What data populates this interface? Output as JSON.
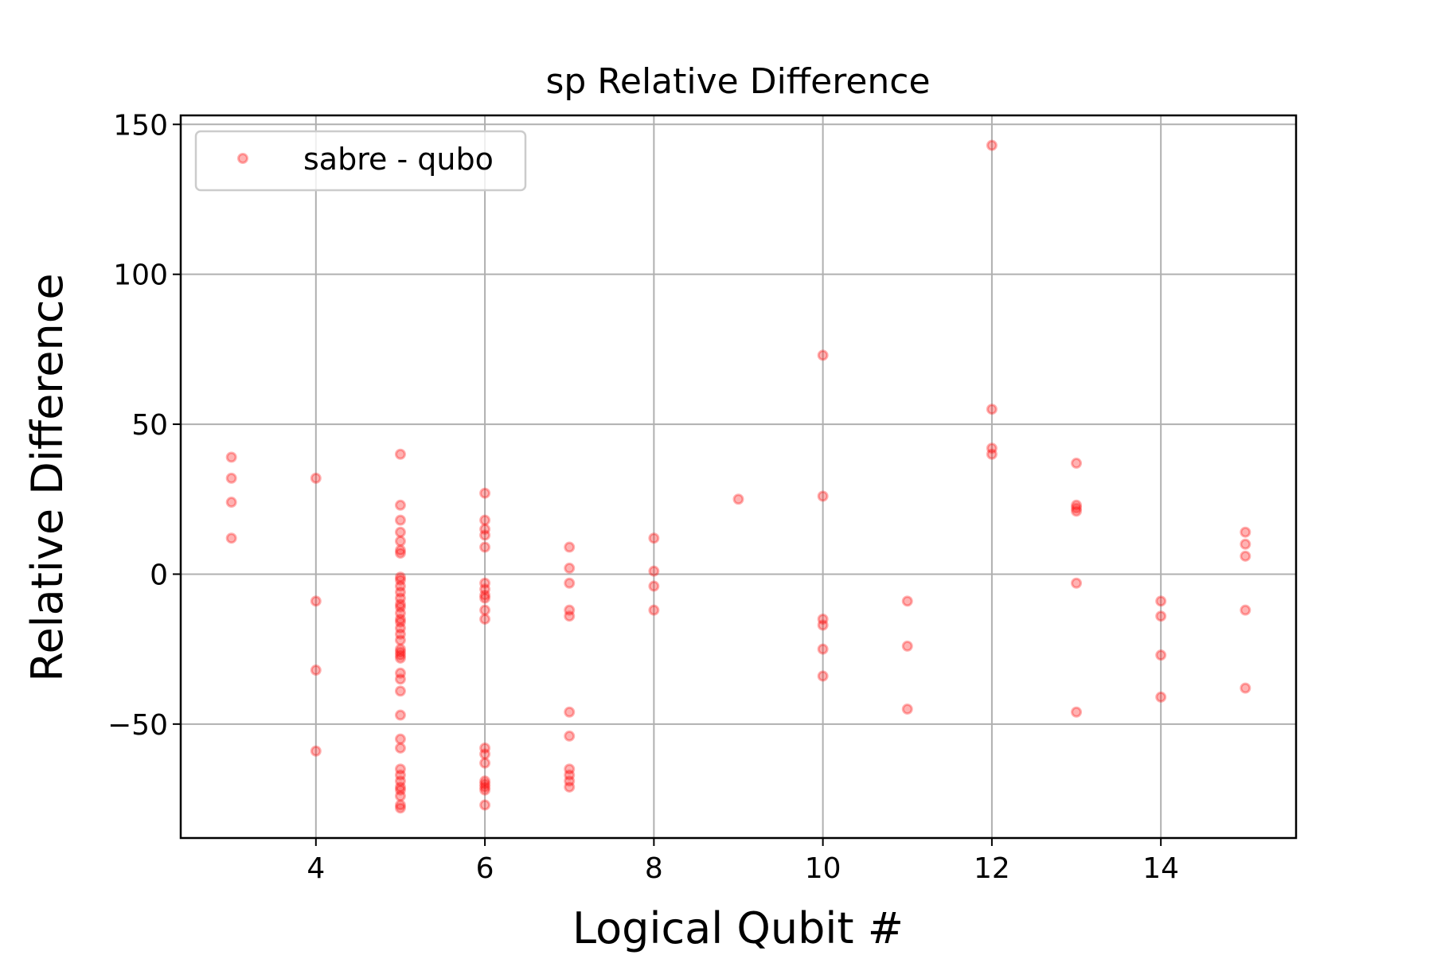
{
  "chart_data": {
    "type": "scatter",
    "title": "sp Relative Difference",
    "xlabel": "Logical Qubit #",
    "ylabel": "Relative Difference",
    "xlim": [
      2.4,
      15.6
    ],
    "ylim": [
      -88,
      153
    ],
    "x_ticks": [
      4,
      6,
      8,
      10,
      12,
      14
    ],
    "x_tick_labels": [
      "4",
      "6",
      "8",
      "10",
      "12",
      "14"
    ],
    "y_ticks": [
      -50,
      0,
      50,
      100,
      150
    ],
    "y_tick_labels": [
      "−50",
      "0",
      "50",
      "100",
      "150"
    ],
    "grid": true,
    "legend": {
      "position": "top-left"
    },
    "series": [
      {
        "name": "sabre - qubo",
        "color": "#ff0000",
        "marker": "circle",
        "points": [
          [
            3,
            39
          ],
          [
            3,
            32
          ],
          [
            3,
            24
          ],
          [
            3,
            12
          ],
          [
            4,
            32
          ],
          [
            4,
            -9
          ],
          [
            4,
            -32
          ],
          [
            4,
            -59
          ],
          [
            5,
            40
          ],
          [
            5,
            23
          ],
          [
            5,
            18
          ],
          [
            5,
            14
          ],
          [
            5,
            11
          ],
          [
            5,
            8
          ],
          [
            5,
            7
          ],
          [
            5,
            -1
          ],
          [
            5,
            -2
          ],
          [
            5,
            -4
          ],
          [
            5,
            -6
          ],
          [
            5,
            -8
          ],
          [
            5,
            -10
          ],
          [
            5,
            -11
          ],
          [
            5,
            -13
          ],
          [
            5,
            -15
          ],
          [
            5,
            -16
          ],
          [
            5,
            -18
          ],
          [
            5,
            -20
          ],
          [
            5,
            -22
          ],
          [
            5,
            -25
          ],
          [
            5,
            -26
          ],
          [
            5,
            -27
          ],
          [
            5,
            -28
          ],
          [
            5,
            -33
          ],
          [
            5,
            -35
          ],
          [
            5,
            -39
          ],
          [
            5,
            -47
          ],
          [
            5,
            -55
          ],
          [
            5,
            -58
          ],
          [
            5,
            -65
          ],
          [
            5,
            -67
          ],
          [
            5,
            -69
          ],
          [
            5,
            -71
          ],
          [
            5,
            -72
          ],
          [
            5,
            -74
          ],
          [
            5,
            -77
          ],
          [
            5,
            -78
          ],
          [
            6,
            27
          ],
          [
            6,
            18
          ],
          [
            6,
            15
          ],
          [
            6,
            13
          ],
          [
            6,
            9
          ],
          [
            6,
            -3
          ],
          [
            6,
            -5
          ],
          [
            6,
            -7
          ],
          [
            6,
            -8
          ],
          [
            6,
            -12
          ],
          [
            6,
            -15
          ],
          [
            6,
            -58
          ],
          [
            6,
            -60
          ],
          [
            6,
            -63
          ],
          [
            6,
            -69
          ],
          [
            6,
            -70
          ],
          [
            6,
            -71
          ],
          [
            6,
            -72
          ],
          [
            6,
            -77
          ],
          [
            7,
            9
          ],
          [
            7,
            2
          ],
          [
            7,
            -3
          ],
          [
            7,
            -12
          ],
          [
            7,
            -14
          ],
          [
            7,
            -46
          ],
          [
            7,
            -54
          ],
          [
            7,
            -65
          ],
          [
            7,
            -67
          ],
          [
            7,
            -69
          ],
          [
            7,
            -71
          ],
          [
            8,
            12
          ],
          [
            8,
            1
          ],
          [
            8,
            -4
          ],
          [
            8,
            -12
          ],
          [
            9,
            25
          ],
          [
            10,
            73
          ],
          [
            10,
            26
          ],
          [
            10,
            -15
          ],
          [
            10,
            -17
          ],
          [
            10,
            -25
          ],
          [
            10,
            -34
          ],
          [
            11,
            -9
          ],
          [
            11,
            -24
          ],
          [
            11,
            -45
          ],
          [
            12,
            143
          ],
          [
            12,
            55
          ],
          [
            12,
            42
          ],
          [
            12,
            40
          ],
          [
            13,
            37
          ],
          [
            13,
            23
          ],
          [
            13,
            22
          ],
          [
            13,
            21
          ],
          [
            13,
            -3
          ],
          [
            13,
            -46
          ],
          [
            14,
            -9
          ],
          [
            14,
            -14
          ],
          [
            14,
            -27
          ],
          [
            14,
            -41
          ],
          [
            15,
            14
          ],
          [
            15,
            10
          ],
          [
            15,
            6
          ],
          [
            15,
            -12
          ],
          [
            15,
            -38
          ]
        ]
      }
    ]
  }
}
